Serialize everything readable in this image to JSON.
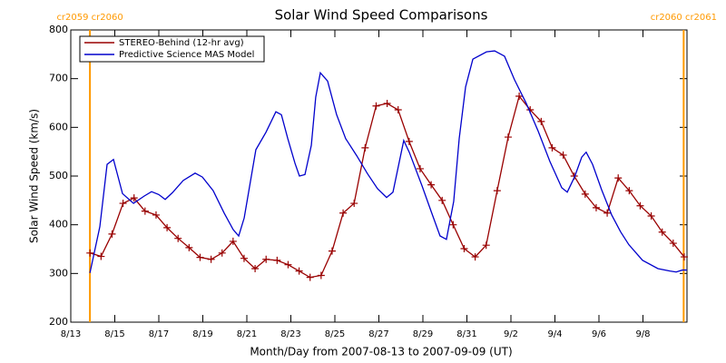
{
  "chart_data": {
    "type": "line",
    "title": "Solar Wind Speed Comparisons",
    "xlabel": "Month/Day from 2007-08-13 to 2007-09-09 (UT)",
    "ylabel": "Solar Wind Speed (km/s)",
    "xlim": [
      0,
      28
    ],
    "xticks": [
      {
        "value": 0,
        "label": "8/13"
      },
      {
        "value": 2,
        "label": "8/15"
      },
      {
        "value": 4,
        "label": "8/17"
      },
      {
        "value": 6,
        "label": "8/19"
      },
      {
        "value": 8,
        "label": "8/21"
      },
      {
        "value": 10,
        "label": "8/23"
      },
      {
        "value": 12,
        "label": "8/25"
      },
      {
        "value": 14,
        "label": "8/27"
      },
      {
        "value": 16,
        "label": "8/29"
      },
      {
        "value": 18,
        "label": "8/31"
      },
      {
        "value": 20,
        "label": "9/2"
      },
      {
        "value": 22,
        "label": "9/4"
      },
      {
        "value": 24,
        "label": "9/6"
      },
      {
        "value": 26,
        "label": "9/8"
      }
    ],
    "ylim": [
      200,
      800
    ],
    "yticks": [
      200,
      300,
      400,
      500,
      600,
      700,
      800
    ],
    "legend": "top-left",
    "markers": [
      {
        "x": 0.87,
        "label": "cr2059 cr2060",
        "color": "#ff9900"
      },
      {
        "x": 27.85,
        "label": "cr2060 cr2061",
        "color": "#ff9900"
      }
    ],
    "series": [
      {
        "name": "STEREO-Behind (12-hr avg)",
        "color": "#990000",
        "marker": "+",
        "x": [
          0.875,
          1.375,
          1.875,
          2.375,
          2.875,
          3.375,
          3.875,
          4.375,
          4.875,
          5.375,
          5.875,
          6.375,
          6.875,
          7.375,
          7.875,
          8.375,
          8.875,
          9.375,
          9.875,
          10.375,
          10.875,
          11.375,
          11.875,
          12.375,
          12.875,
          13.375,
          13.875,
          14.375,
          14.875,
          15.375,
          15.875,
          16.375,
          16.875,
          17.375,
          17.875,
          18.375,
          18.875,
          19.375,
          19.875,
          20.375,
          20.875,
          21.375,
          21.875,
          22.375,
          22.875,
          23.375,
          23.875,
          24.375,
          24.875,
          25.375,
          25.875,
          26.375,
          26.875,
          27.375,
          27.875
        ],
        "values": [
          342,
          335,
          381,
          444,
          455,
          428,
          420,
          394,
          372,
          353,
          333,
          329,
          342,
          366,
          331,
          310,
          329,
          327,
          318,
          305,
          292,
          296,
          346,
          424,
          444,
          558,
          644,
          649,
          636,
          571,
          515,
          482,
          450,
          400,
          351,
          334,
          358,
          470,
          580,
          664,
          636,
          612,
          558,
          543,
          500,
          463,
          435,
          424,
          496,
          470,
          439,
          418,
          385,
          362,
          334
        ]
      },
      {
        "name": "Predictive Science MAS Model",
        "color": "#0000cc",
        "x": [
          0.87,
          1.32,
          1.65,
          1.94,
          2.35,
          2.85,
          3.34,
          3.67,
          4.0,
          4.29,
          4.62,
          5.11,
          5.65,
          5.98,
          6.47,
          6.97,
          7.38,
          7.63,
          7.88,
          8.41,
          8.87,
          9.32,
          9.57,
          9.86,
          10.19,
          10.39,
          10.64,
          10.93,
          11.13,
          11.34,
          11.67,
          12.08,
          12.49,
          12.99,
          13.48,
          13.94,
          14.35,
          14.64,
          15.13,
          15.38,
          15.96,
          16.37,
          16.78,
          17.07,
          17.4,
          17.65,
          17.94,
          18.27,
          18.89,
          19.26,
          19.71,
          20.16,
          20.7,
          21.24,
          21.77,
          22.31,
          22.56,
          22.89,
          23.22,
          23.42,
          23.71,
          24.12,
          24.58,
          24.99,
          25.36,
          25.98,
          26.68,
          27.22,
          27.51,
          27.79,
          28.0
        ],
        "values": [
          301,
          396,
          524,
          534,
          464,
          444,
          459,
          468,
          462,
          452,
          466,
          491,
          506,
          498,
          470,
          424,
          390,
          377,
          414,
          554,
          590,
          632,
          626,
          577,
          526,
          500,
          503,
          563,
          662,
          712,
          695,
          626,
          577,
          542,
          505,
          474,
          456,
          467,
          573,
          549,
          480,
          428,
          377,
          370,
          448,
          577,
          683,
          740,
          755,
          757,
          746,
          698,
          649,
          592,
          530,
          476,
          467,
          498,
          539,
          549,
          524,
          472,
          420,
          385,
          359,
          327,
          310,
          305,
          303,
          307,
          307
        ]
      }
    ]
  }
}
